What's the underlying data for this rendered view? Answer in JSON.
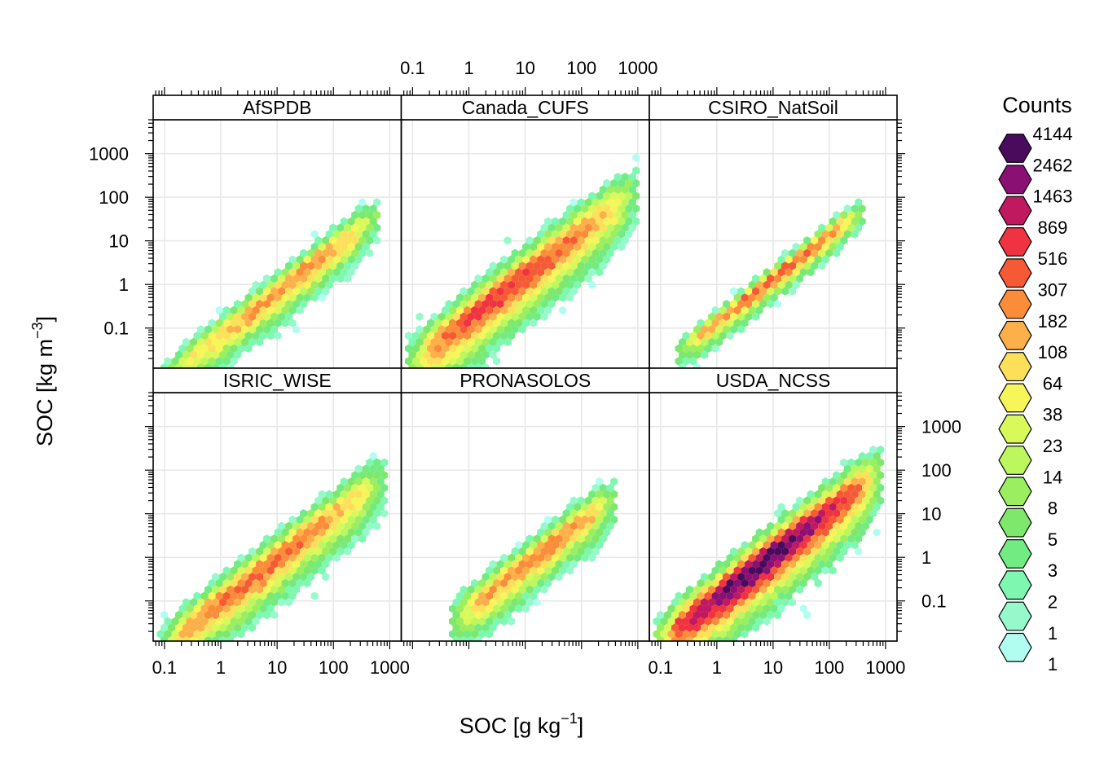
{
  "chart_data": {
    "type": "hexbin",
    "xlabel": "SOC [g kg",
    "xlabel_sup": "−1",
    "xlabel_end": "]",
    "ylabel": "SOC [kg m",
    "ylabel_sup": "−3",
    "ylabel_end": "]",
    "x_scale": "log10",
    "y_scale": "log10",
    "xlim": [
      0.063,
      1600
    ],
    "ylim": [
      0.012,
      6000
    ],
    "x_ticks": [
      0.1,
      1,
      10,
      100,
      1000
    ],
    "x_tick_labels": [
      "0.1",
      "1",
      "10",
      "100",
      "1000"
    ],
    "y_ticks": [
      0.1,
      1,
      10,
      100,
      1000
    ],
    "y_tick_labels": [
      "0.1",
      "1",
      "10",
      "100",
      "1000"
    ],
    "grid": true,
    "legend": {
      "title": "Counts",
      "placement": "right",
      "breaks": [
        "4144",
        "2462",
        "1463",
        "869",
        "516",
        "307",
        "182",
        "108",
        "64",
        "38",
        "23",
        "14",
        "8",
        "5",
        "3",
        "2",
        "1"
      ],
      "colors": [
        "#4a0b5c",
        "#8a1073",
        "#c0195f",
        "#ef3340",
        "#f65a35",
        "#fb8c3a",
        "#fdb04a",
        "#fde059",
        "#f6f55a",
        "#d9f95b",
        "#bcf75e",
        "#9bee5f",
        "#7de86c",
        "#72ec82",
        "#7ef7b0",
        "#95f9cc",
        "#b1fdf0"
      ]
    },
    "panels": [
      {
        "title": "AfSPDB",
        "row": 0,
        "col": 0,
        "x_range": [
          0.08,
          600
        ],
        "ridge": {
          "intercept": -1.15,
          "slope": 1.0
        },
        "spread": 0.24,
        "peak_level": 5,
        "peak_x": 15
      },
      {
        "title": "Canada_CUFS",
        "row": 0,
        "col": 1,
        "x_range": [
          0.08,
          1000
        ],
        "ridge": {
          "intercept": -0.75,
          "slope": 1.0
        },
        "spread": 0.36,
        "peak_level": 3,
        "peak_x": 5
      },
      {
        "title": "CSIRO_NatSoil",
        "row": 0,
        "col": 2,
        "x_range": [
          0.2,
          400
        ],
        "ridge": {
          "intercept": -0.85,
          "slope": 1.0
        },
        "spread": 0.16,
        "peak_level": 4,
        "peak_x": 12
      },
      {
        "title": "ISRIC_WISE",
        "row": 1,
        "col": 0,
        "x_range": [
          0.08,
          900
        ],
        "ridge": {
          "intercept": -1.0,
          "slope": 1.0
        },
        "spread": 0.32,
        "peak_level": 4,
        "peak_x": 5
      },
      {
        "title": "PRONASOLOS",
        "row": 1,
        "col": 1,
        "x_range": [
          0.5,
          400
        ],
        "ridge": {
          "intercept": -1.15,
          "slope": 1.0
        },
        "spread": 0.27,
        "peak_level": 5,
        "peak_x": 15
      },
      {
        "title": "USDA_NCSS",
        "row": 1,
        "col": 2,
        "x_range": [
          0.08,
          900
        ],
        "ridge": {
          "intercept": -0.9,
          "slope": 1.0
        },
        "spread": 0.38,
        "peak_level": 0,
        "peak_x": 6
      }
    ]
  }
}
